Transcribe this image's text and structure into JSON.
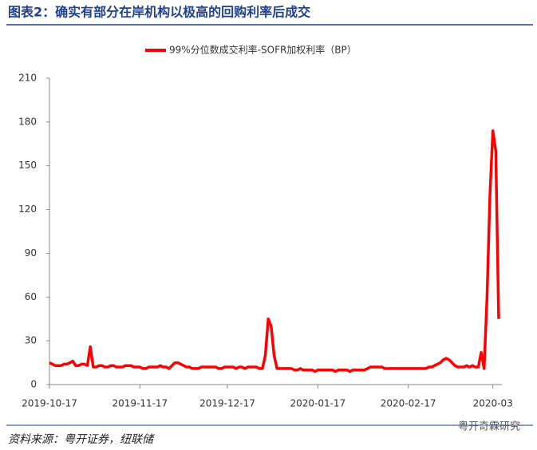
{
  "header": {
    "title": "图表2：确实有部分在岸机构以极高的回购利率后成交"
  },
  "chart_data": {
    "type": "line",
    "categories": [
      "2019-10-17",
      null,
      null,
      null,
      null,
      null,
      null,
      null,
      null,
      null,
      null,
      null,
      null,
      null,
      null,
      null,
      null,
      null,
      null,
      null,
      null,
      null,
      null,
      null,
      null,
      null,
      null,
      null,
      null,
      null,
      null,
      "2019-11-17",
      null,
      null,
      null,
      null,
      null,
      null,
      null,
      null,
      null,
      null,
      null,
      null,
      null,
      null,
      null,
      null,
      null,
      null,
      null,
      null,
      null,
      null,
      null,
      null,
      null,
      null,
      null,
      null,
      null,
      "2019-12-17",
      null,
      null,
      null,
      null,
      null,
      null,
      null,
      null,
      null,
      null,
      null,
      null,
      null,
      null,
      null,
      null,
      null,
      null,
      null,
      null,
      null,
      null,
      null,
      null,
      null,
      null,
      null,
      null,
      null,
      null,
      "2020-01-17",
      null,
      null,
      null,
      null,
      null,
      null,
      null,
      null,
      null,
      null,
      null,
      null,
      null,
      null,
      null,
      null,
      null,
      null,
      null,
      null,
      null,
      null,
      null,
      null,
      null,
      null,
      null,
      null,
      null,
      null,
      "2020-02-17",
      null,
      null,
      null,
      null,
      null,
      null,
      null,
      null,
      null,
      null,
      null,
      null,
      null,
      null,
      null,
      null,
      null,
      null,
      null,
      null,
      null,
      null,
      null,
      null,
      null,
      null,
      null,
      null,
      "2020-03",
      null,
      null
    ],
    "series": [
      {
        "name": "99%分位数成交利率-SOFR加权利率（BP）",
        "color": "#ff0000",
        "values": [
          15,
          14,
          13,
          13,
          13,
          14,
          14,
          15,
          16,
          13,
          13,
          14,
          14,
          13,
          26,
          12,
          12,
          13,
          13,
          12,
          12,
          13,
          13,
          12,
          12,
          12,
          13,
          13,
          13,
          12,
          12,
          12,
          11,
          11,
          12,
          12,
          12,
          12,
          13,
          12,
          12,
          11,
          13,
          15,
          15,
          14,
          13,
          12,
          12,
          11,
          11,
          11,
          12,
          12,
          12,
          12,
          12,
          12,
          11,
          11,
          12,
          12,
          12,
          12,
          11,
          12,
          12,
          11,
          12,
          12,
          12,
          12,
          11,
          11,
          20,
          45,
          40,
          20,
          11,
          11,
          11,
          11,
          11,
          11,
          10,
          10,
          11,
          10,
          10,
          10,
          10,
          9,
          10,
          10,
          10,
          10,
          10,
          10,
          9,
          10,
          10,
          10,
          10,
          9,
          10,
          10,
          10,
          10,
          10,
          11,
          12,
          12,
          12,
          12,
          12,
          11,
          11,
          11,
          11,
          11,
          11,
          11,
          11,
          11,
          11,
          11,
          11,
          11,
          11,
          11,
          12,
          12,
          13,
          14,
          15,
          17,
          18,
          17,
          15,
          13,
          12,
          12,
          12,
          13,
          12,
          13,
          12,
          12,
          22,
          11,
          60,
          130,
          174,
          160,
          45
        ]
      }
    ],
    "ylim": [
      0,
      210
    ],
    "yticks": [
      0,
      30,
      60,
      90,
      120,
      150,
      180,
      210
    ],
    "grid": false,
    "legend": "top"
  },
  "footer": {
    "source": "资料来源：粤开证券，纽联储",
    "watermark": "粤开奇霖研究"
  }
}
